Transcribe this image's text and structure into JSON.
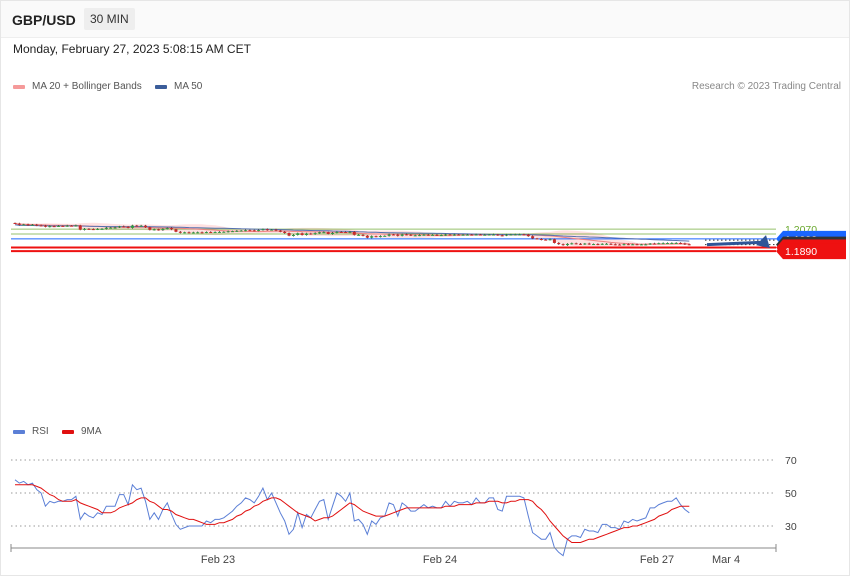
{
  "header": {
    "pair": "GBP/USD",
    "timeframe": "30 MIN"
  },
  "timestamp": "Monday, February 27, 2023 5:08:15 AM CET",
  "legend": [
    {
      "label": "MA 20 + Bollinger Bands",
      "color": "#f59a9a"
    },
    {
      "label": "MA 50",
      "color": "#3b5d9a"
    }
  ],
  "credit": "Research © 2023 Trading Central",
  "rsi_legend": [
    {
      "label": "RSI",
      "color": "#5b7fd6"
    },
    {
      "label": "9MA",
      "color": "#e01010"
    }
  ],
  "colors": {
    "up": "#2f9e44",
    "down": "#c92a2a",
    "bollinger": "#ffdcdc",
    "ma20": "#f08080",
    "ma50": "#5470b0"
  },
  "chart_data": [
    {
      "type": "candlestick",
      "title": "",
      "ylim": [
        1.1875,
        1.2135
      ],
      "x_ticks": [
        "Feb 23",
        "Feb 24",
        "Feb 27",
        "Mar 4"
      ],
      "levels": [
        {
          "value": 1.207,
          "label": "1.2070",
          "kind": "resistance-minor",
          "color": "#6aa82e"
        },
        {
          "value": 1.203,
          "label": "1.2030",
          "kind": "resistance-minor",
          "color": "#6aa82e"
        },
        {
          "value": 1.199,
          "label": "1.1990",
          "kind": "pivot",
          "color": "#1a66ff"
        },
        {
          "value": 1.1943,
          "label": "1.1943",
          "kind": "last-price",
          "color": "#333333"
        },
        {
          "value": 1.192,
          "label": "1.1920",
          "kind": "support",
          "color": "#ee1111"
        },
        {
          "value": 1.189,
          "label": "1.1890",
          "kind": "support",
          "color": "#ee1111"
        }
      ],
      "forecast_arrow": {
        "from": 1.1943,
        "to": 1.189,
        "color": "#2f5597"
      },
      "close": [
        1.2115,
        1.2105,
        1.2108,
        1.2103,
        1.2106,
        1.21,
        1.2099,
        1.2089,
        1.2094,
        1.2093,
        1.2096,
        1.2095,
        1.2098,
        1.2096,
        1.21,
        1.2065,
        1.2072,
        1.207,
        1.2068,
        1.2072,
        1.2072,
        1.2081,
        1.2082,
        1.2083,
        1.2092,
        1.209,
        1.208,
        1.2099,
        1.2096,
        1.2098,
        1.2085,
        1.2064,
        1.2068,
        1.2062,
        1.2071,
        1.2078,
        1.2068,
        1.2048,
        1.2041,
        1.2044,
        1.2042,
        1.2043,
        1.2044,
        1.2042,
        1.2046,
        1.2044,
        1.2046,
        1.2047,
        1.2048,
        1.2052,
        1.2053,
        1.2056,
        1.2058,
        1.2061,
        1.206,
        1.2058,
        1.2062,
        1.2069,
        1.2063,
        1.2066,
        1.2059,
        1.2048,
        1.2038,
        1.2016,
        1.2022,
        1.2036,
        1.2022,
        1.2034,
        1.2029,
        1.2037,
        1.2044,
        1.2045,
        1.203,
        1.2039,
        1.2047,
        1.2046,
        1.2043,
        1.2048,
        1.2023,
        1.2023,
        1.2016,
        1.2,
        1.2012,
        1.2008,
        1.2013,
        1.2015,
        1.2026,
        1.2025,
        1.2015,
        1.2027,
        1.2024,
        1.2019,
        1.2019,
        1.2021,
        1.2024,
        1.2022,
        1.2023,
        1.2021,
        1.2021,
        1.2025,
        1.2022,
        1.2025,
        1.2024,
        1.2024,
        1.2025,
        1.2024,
        1.2026,
        1.2024,
        1.2024,
        1.2026,
        1.2026,
        1.2019,
        1.2017,
        1.2026,
        1.2026,
        1.2027,
        1.2027,
        1.2026,
        1.2012,
        1.1994,
        1.1989,
        1.1984,
        1.1983,
        1.1987,
        1.1957,
        1.1947,
        1.1939,
        1.1949,
        1.1954,
        1.195,
        1.1946,
        1.1952,
        1.1948,
        1.1948,
        1.1945,
        1.195,
        1.195,
        1.1946,
        1.1944,
        1.1943,
        1.1947,
        1.1945,
        1.1946,
        1.1945,
        1.1945,
        1.1945,
        1.1952,
        1.1951,
        1.1955,
        1.1955,
        1.1956,
        1.1956,
        1.1957,
        1.1953,
        1.1946,
        1.1943
      ],
      "series": [
        {
          "name": "RSI",
          "values": [
            58,
            56,
            57,
            55,
            56,
            52,
            50,
            42,
            45,
            44,
            45,
            45,
            46,
            46,
            48,
            34,
            38,
            36,
            35,
            38,
            37,
            42,
            42,
            42,
            49,
            49,
            43,
            55,
            52,
            53,
            45,
            34,
            38,
            34,
            40,
            44,
            37,
            31,
            28,
            29,
            30,
            30,
            30,
            30,
            33,
            32,
            34,
            34,
            35,
            37,
            39,
            42,
            44,
            47,
            46,
            44,
            48,
            53,
            46,
            50,
            44,
            38,
            33,
            25,
            28,
            38,
            29,
            37,
            35,
            40,
            45,
            46,
            34,
            42,
            50,
            48,
            45,
            50,
            33,
            34,
            31,
            25,
            33,
            31,
            35,
            36,
            44,
            43,
            36,
            44,
            42,
            39,
            39,
            41,
            43,
            41,
            42,
            41,
            41,
            45,
            42,
            45,
            44,
            44,
            45,
            43,
            47,
            44,
            44,
            47,
            47,
            40,
            39,
            48,
            48,
            48,
            48,
            47,
            36,
            26,
            24,
            22,
            22,
            26,
            17,
            14,
            12,
            22,
            24,
            24,
            23,
            28,
            27,
            27,
            26,
            31,
            31,
            29,
            29,
            28,
            33,
            32,
            34,
            33,
            34,
            35,
            41,
            41,
            43,
            44,
            45,
            45,
            47,
            43,
            40,
            38
          ]
        },
        {
          "name": "9MA",
          "values": [
            55,
            55,
            55,
            55,
            55,
            54,
            53,
            51,
            49,
            48,
            46,
            45,
            45,
            45,
            46,
            44,
            43,
            42,
            41,
            40,
            38,
            38,
            38,
            39,
            41,
            42,
            43,
            44,
            46,
            47,
            47,
            45,
            44,
            42,
            40,
            40,
            39,
            37,
            36,
            35,
            34,
            34,
            33,
            32,
            31,
            31,
            31,
            32,
            32,
            33,
            34,
            36,
            37,
            39,
            40,
            42,
            43,
            45,
            46,
            47,
            47,
            46,
            44,
            42,
            40,
            38,
            37,
            36,
            35,
            33,
            34,
            35,
            35,
            36,
            38,
            40,
            42,
            44,
            43,
            41,
            39,
            38,
            37,
            36,
            36,
            36,
            37,
            38,
            39,
            40,
            41,
            41,
            41,
            41,
            41,
            41,
            41,
            41,
            41,
            42,
            42,
            42,
            43,
            43,
            43,
            43,
            44,
            44,
            44,
            45,
            45,
            45,
            44,
            44,
            45,
            45,
            46,
            46,
            46,
            45,
            42,
            40,
            37,
            33,
            30,
            27,
            24,
            22,
            20,
            20,
            20,
            21,
            22,
            22,
            23,
            24,
            25,
            26,
            27,
            28,
            29,
            29,
            30,
            30,
            31,
            32,
            33,
            34,
            36,
            37,
            38,
            40,
            41,
            42,
            42,
            42
          ]
        }
      ],
      "rsi_levels": [
        70,
        50,
        30
      ]
    }
  ]
}
